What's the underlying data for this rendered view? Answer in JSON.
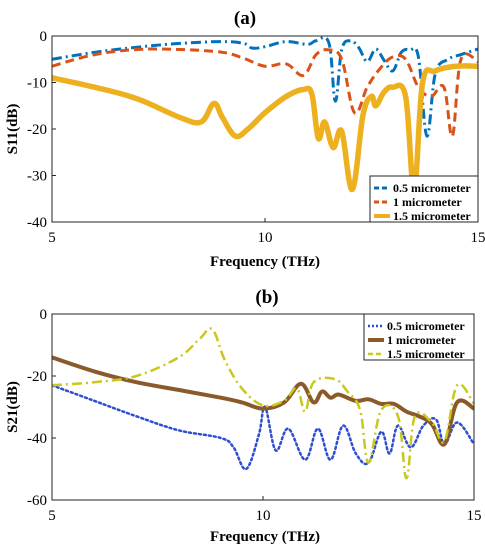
{
  "chart_data": [
    {
      "type": "line",
      "title": "(a)",
      "xlabel": "Frequency (THz)",
      "ylabel": "S11(dB)",
      "xlim": [
        5,
        15
      ],
      "ylim": [
        -40,
        0
      ],
      "xticks": [
        "5",
        "10",
        "15"
      ],
      "yticks": [
        "0",
        "-10",
        "-20",
        "-30",
        "-40"
      ],
      "grid": false,
      "legend_position": "bottom-right",
      "series": [
        {
          "name": "0.5 micrometer",
          "color": "#0072BD",
          "style": "dashdot",
          "points": [
            [
              5,
              -5
            ],
            [
              6,
              -3.5
            ],
            [
              7,
              -2.4
            ],
            [
              8,
              -1.6
            ],
            [
              9,
              -1.2
            ],
            [
              9.5,
              -1.6
            ],
            [
              9.7,
              -2.6
            ],
            [
              10,
              -2.3
            ],
            [
              10.5,
              -1.2
            ],
            [
              11,
              -1.8
            ],
            [
              11.2,
              -1.0
            ],
            [
              11.5,
              -1.5
            ],
            [
              11.65,
              -14
            ],
            [
              11.8,
              -3
            ],
            [
              12,
              -1.0
            ],
            [
              12.2,
              -2.5
            ],
            [
              12.4,
              -5.5
            ],
            [
              12.6,
              -2.8
            ],
            [
              12.8,
              -5.3
            ],
            [
              13,
              -7.5
            ],
            [
              13.2,
              -3.5
            ],
            [
              13.4,
              -3.0
            ],
            [
              13.6,
              -4.5
            ],
            [
              13.8,
              -21.5
            ],
            [
              14.0,
              -8
            ],
            [
              14.3,
              -5
            ],
            [
              14.6,
              -4
            ],
            [
              15,
              -2.8
            ]
          ]
        },
        {
          "name": "1    micrometer",
          "color": "#D95319",
          "style": "dashed",
          "points": [
            [
              5,
              -6.5
            ],
            [
              6,
              -4
            ],
            [
              7,
              -2.9
            ],
            [
              8,
              -2.9
            ],
            [
              9,
              -3.5
            ],
            [
              9.5,
              -4.8
            ],
            [
              10,
              -6.5
            ],
            [
              10.5,
              -6
            ],
            [
              10.9,
              -8.5
            ],
            [
              11.2,
              -4
            ],
            [
              11.5,
              -3
            ],
            [
              11.8,
              -5
            ],
            [
              12.1,
              -16.5
            ],
            [
              12.4,
              -11
            ],
            [
              12.7,
              -7
            ],
            [
              13,
              -4.5
            ],
            [
              13.3,
              -5
            ],
            [
              13.6,
              -11
            ],
            [
              13.9,
              -13
            ],
            [
              14.2,
              -11
            ],
            [
              14.4,
              -21.5
            ],
            [
              14.6,
              -5
            ],
            [
              15,
              -5.5
            ]
          ]
        },
        {
          "name": "1.5 micrometer",
          "color": "#EDB120",
          "style": "solid",
          "points": [
            [
              5,
              -9
            ],
            [
              6,
              -11
            ],
            [
              7,
              -13.5
            ],
            [
              8,
              -17.5
            ],
            [
              8.5,
              -18.5
            ],
            [
              8.8,
              -14.5
            ],
            [
              9.0,
              -17.5
            ],
            [
              9.3,
              -21.5
            ],
            [
              9.6,
              -20
            ],
            [
              10,
              -16.5
            ],
            [
              10.5,
              -13
            ],
            [
              10.9,
              -11.5
            ],
            [
              11.1,
              -12.5
            ],
            [
              11.25,
              -22
            ],
            [
              11.4,
              -18.5
            ],
            [
              11.6,
              -24
            ],
            [
              11.8,
              -20.5
            ],
            [
              12.05,
              -33
            ],
            [
              12.3,
              -17
            ],
            [
              12.5,
              -13
            ],
            [
              12.6,
              -15
            ],
            [
              12.8,
              -12
            ],
            [
              13,
              -11
            ],
            [
              13.3,
              -13
            ],
            [
              13.5,
              -33
            ],
            [
              13.7,
              -10
            ],
            [
              14,
              -7.5
            ],
            [
              14.5,
              -6.5
            ],
            [
              15,
              -6.5
            ]
          ]
        }
      ]
    },
    {
      "type": "line",
      "title": "(b)",
      "xlabel": "Frequency (THz)",
      "ylabel": "S21(dB)",
      "xlim": [
        5,
        15
      ],
      "ylim": [
        -60,
        0
      ],
      "xticks": [
        "5",
        "10",
        "15"
      ],
      "yticks": [
        "0",
        "-20",
        "-40",
        "-60"
      ],
      "grid": false,
      "legend_position": "top-right",
      "series": [
        {
          "name": "0.5 micrometer",
          "color": "#2E4FD0",
          "style": "dotted",
          "points": [
            [
              5,
              -23
            ],
            [
              6,
              -28
            ],
            [
              7,
              -33
            ],
            [
              8,
              -37.5
            ],
            [
              9,
              -40
            ],
            [
              9.3,
              -43
            ],
            [
              9.6,
              -50
            ],
            [
              9.9,
              -39
            ],
            [
              10.05,
              -30
            ],
            [
              10.3,
              -44
            ],
            [
              10.6,
              -37
            ],
            [
              11,
              -47
            ],
            [
              11.3,
              -37
            ],
            [
              11.6,
              -47
            ],
            [
              11.9,
              -36
            ],
            [
              12.2,
              -45
            ],
            [
              12.5,
              -48
            ],
            [
              12.8,
              -38
            ],
            [
              13,
              -45
            ],
            [
              13.2,
              -36
            ],
            [
              13.5,
              -43
            ],
            [
              13.8,
              -36
            ],
            [
              14.1,
              -34
            ],
            [
              14.3,
              -42
            ],
            [
              14.6,
              -35
            ],
            [
              15,
              -42
            ]
          ]
        },
        {
          "name": "1 micrometer",
          "color": "#8B5A2B",
          "style": "solid",
          "points": [
            [
              5,
              -14
            ],
            [
              6,
              -18.5
            ],
            [
              7,
              -22
            ],
            [
              8,
              -24.5
            ],
            [
              9,
              -27
            ],
            [
              9.5,
              -28.5
            ],
            [
              10,
              -30.5
            ],
            [
              10.5,
              -28.5
            ],
            [
              10.9,
              -22.5
            ],
            [
              11.2,
              -28.5
            ],
            [
              11.4,
              -25
            ],
            [
              11.6,
              -27
            ],
            [
              11.8,
              -26
            ],
            [
              12.2,
              -28
            ],
            [
              12.5,
              -27.5
            ],
            [
              12.8,
              -29
            ],
            [
              13.1,
              -29
            ],
            [
              13.4,
              -31.5
            ],
            [
              13.7,
              -33
            ],
            [
              14,
              -35.5
            ],
            [
              14.3,
              -42
            ],
            [
              14.6,
              -28.5
            ],
            [
              15,
              -30.5
            ]
          ]
        },
        {
          "name": "1.5 micrometer",
          "color": "#C8C81E",
          "style": "dashdot",
          "points": [
            [
              5,
              -23
            ],
            [
              6,
              -22
            ],
            [
              7,
              -20
            ],
            [
              8,
              -14
            ],
            [
              8.5,
              -8
            ],
            [
              8.8,
              -5
            ],
            [
              9.1,
              -15
            ],
            [
              9.5,
              -24
            ],
            [
              10,
              -29.5
            ],
            [
              10.5,
              -28
            ],
            [
              10.8,
              -24
            ],
            [
              11.0,
              -31.5
            ],
            [
              11.2,
              -22
            ],
            [
              11.7,
              -21
            ],
            [
              12,
              -25
            ],
            [
              12.3,
              -31
            ],
            [
              12.5,
              -48
            ],
            [
              12.8,
              -31
            ],
            [
              13.2,
              -33
            ],
            [
              13.4,
              -53
            ],
            [
              13.6,
              -33
            ],
            [
              14,
              -35
            ],
            [
              14.3,
              -41
            ],
            [
              14.6,
              -23
            ],
            [
              15,
              -29
            ]
          ]
        }
      ]
    }
  ]
}
